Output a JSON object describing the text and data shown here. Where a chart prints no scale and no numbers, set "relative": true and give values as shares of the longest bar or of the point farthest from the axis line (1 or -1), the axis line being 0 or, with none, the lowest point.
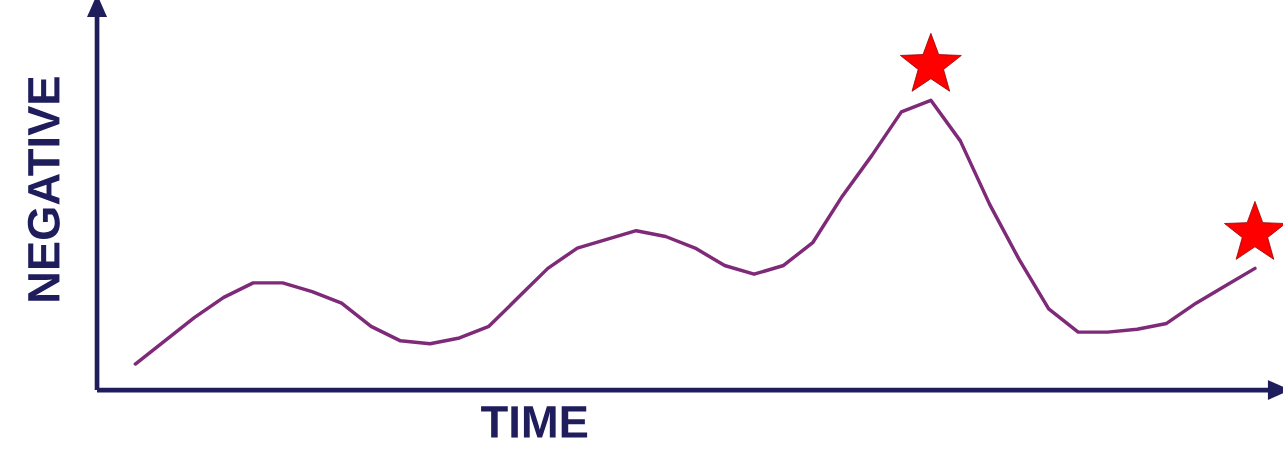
{
  "chart_data": {
    "type": "line",
    "relative": true,
    "xlabel": "TIME",
    "ylabel": "NEGATIVE",
    "categories": [
      null,
      null,
      null,
      null,
      null,
      null,
      null,
      null,
      null,
      null,
      null,
      null,
      null,
      null,
      null,
      null,
      null,
      null,
      null,
      null,
      null,
      null,
      null,
      null,
      null,
      null,
      null,
      null,
      null,
      null,
      null,
      null,
      null,
      null,
      null,
      null,
      null,
      null,
      null
    ],
    "series": [
      {
        "color": "#7f2a78",
        "values": [
          0.09,
          0.17,
          0.25,
          0.32,
          0.37,
          0.37,
          0.34,
          0.3,
          0.22,
          0.17,
          0.16,
          0.18,
          0.22,
          0.32,
          0.42,
          0.49,
          0.52,
          0.55,
          0.53,
          0.49,
          0.43,
          0.4,
          0.43,
          0.51,
          0.67,
          0.81,
          0.96,
          1.0,
          0.86,
          0.64,
          0.45,
          0.28,
          0.2,
          0.2,
          0.21,
          0.23,
          0.3,
          0.36,
          0.42
        ]
      }
    ]
  }
}
